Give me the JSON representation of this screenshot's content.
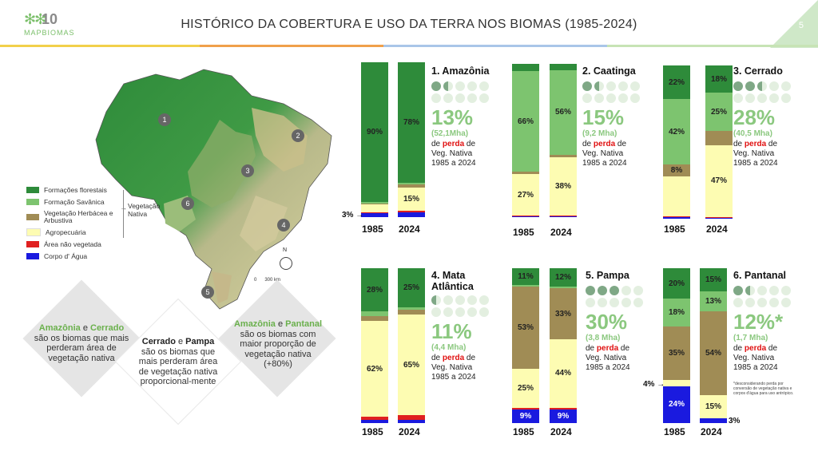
{
  "header": {
    "title": "HISTÓRICO DA COBERTURA E USO DA TERRA NOS BIOMAS (1985-2024)",
    "page": "5",
    "logo_number": "10",
    "logo_sub": "ANOS",
    "logo_text": "MAPBIOMAS"
  },
  "legend": {
    "items": [
      "Formações florestais",
      "Formação Savânica",
      "Vegetação Herbácea e Arbustiva",
      "Agropecuária",
      "Área não vegetada",
      "Corpo d' Água"
    ],
    "group_label": "Vegetação Nativa",
    "colors": [
      "#2e8b3a",
      "#7dc46f",
      "#a08c55",
      "#fdfcb2",
      "#e02020",
      "#1a1adf"
    ]
  },
  "map": {
    "markers": [
      "1",
      "2",
      "3",
      "4",
      "5",
      "6"
    ],
    "scale": "0      300 km",
    "north": "N"
  },
  "diamonds": [
    {
      "hl1": "Amazônia",
      "t1": " e ",
      "hl2": "Cerrado",
      "t2": " são os biomas que mais perderam área de vegetação nativa"
    },
    {
      "hl1": "Cerrado",
      "t1": " e ",
      "hl2": "Pampa",
      "t2": " são os biomas que mais perderam área de vegetação nativa proporcional-mente"
    },
    {
      "hl1": "Amazônia",
      "t1": " e ",
      "hl2": "Pantanal",
      "t2": " são os biomas com maior proporção de vegetação nativa (+80%)"
    }
  ],
  "biomes": [
    {
      "title": "1. Amazônia",
      "pct": "13%",
      "sub": "(52,1Mha)",
      "desc_pre": "de ",
      "desc_red": "perda",
      "desc_post": " de Veg. Nativa 1985 a 2024",
      "dots_full": 1,
      "dots_half": 1,
      "bars": [
        {
          "year": "1985",
          "segs": [
            {
              "c": "#2e8b3a",
              "v": 90,
              "l": "90%"
            },
            {
              "c": "#7dc46f",
              "v": 1,
              "l": ""
            },
            {
              "c": "#a08c55",
              "v": 1,
              "l": ""
            },
            {
              "c": "#fdfcb2",
              "v": 5,
              "l": ""
            },
            {
              "c": "#e02020",
              "v": 0.6,
              "l": ""
            },
            {
              "c": "#1a1adf",
              "v": 2.4,
              "l": ""
            }
          ]
        },
        {
          "year": "2024",
          "segs": [
            {
              "c": "#2e8b3a",
              "v": 78,
              "l": "78%"
            },
            {
              "c": "#7dc46f",
              "v": 1,
              "l": ""
            },
            {
              "c": "#a08c55",
              "v": 2,
              "l": ""
            },
            {
              "c": "#fdfcb2",
              "v": 15,
              "l": "15%"
            },
            {
              "c": "#e02020",
              "v": 1,
              "l": ""
            },
            {
              "c": "#1a1adf",
              "v": 3,
              "l": ""
            }
          ]
        }
      ],
      "callout": "3%"
    },
    {
      "title": "2. Caatinga",
      "pct": "15%",
      "sub": "(9,2 Mha)",
      "desc_pre": "de ",
      "desc_red": "perda",
      "desc_post": " de Veg. Nativa 1985 a 2024",
      "dots_full": 1,
      "dots_half": 1,
      "bars": [
        {
          "year": "1985",
          "segs": [
            {
              "c": "#2e8b3a",
              "v": 5,
              "l": ""
            },
            {
              "c": "#7dc46f",
              "v": 66,
              "l": "66%"
            },
            {
              "c": "#a08c55",
              "v": 2,
              "l": ""
            },
            {
              "c": "#fdfcb2",
              "v": 27,
              "l": "27%"
            },
            {
              "c": "#e02020",
              "v": 0.5,
              "l": ""
            },
            {
              "c": "#1a1adf",
              "v": 0.7,
              "l": ""
            }
          ]
        },
        {
          "year": "2024",
          "segs": [
            {
              "c": "#2e8b3a",
              "v": 4,
              "l": ""
            },
            {
              "c": "#7dc46f",
              "v": 56,
              "l": "56%"
            },
            {
              "c": "#a08c55",
              "v": 2,
              "l": ""
            },
            {
              "c": "#fdfcb2",
              "v": 38,
              "l": "38%"
            },
            {
              "c": "#e02020",
              "v": 0.6,
              "l": ""
            },
            {
              "c": "#1a1adf",
              "v": 0.7,
              "l": ""
            }
          ]
        }
      ]
    },
    {
      "title": "3. Cerrado",
      "pct": "28%",
      "sub": "(40,5 Mha)",
      "desc_pre": "de ",
      "desc_red": "perda",
      "desc_post": " de Veg. Nativa 1985 a 2024",
      "dots_full": 2,
      "dots_half": 1,
      "bars": [
        {
          "year": "1985",
          "segs": [
            {
              "c": "#2e8b3a",
              "v": 22,
              "l": "22%"
            },
            {
              "c": "#7dc46f",
              "v": 42,
              "l": "42%"
            },
            {
              "c": "#a08c55",
              "v": 8,
              "l": "8%"
            },
            {
              "c": "#fdfcb2",
              "v": 26,
              "l": ""
            },
            {
              "c": "#e02020",
              "v": 0.6,
              "l": ""
            },
            {
              "c": "#1a1adf",
              "v": 0.8,
              "l": ""
            }
          ]
        },
        {
          "year": "2024",
          "segs": [
            {
              "c": "#2e8b3a",
              "v": 18,
              "l": "18%"
            },
            {
              "c": "#7dc46f",
              "v": 25,
              "l": "25%"
            },
            {
              "c": "#a08c55",
              "v": 9,
              "l": ""
            },
            {
              "c": "#fdfcb2",
              "v": 47,
              "l": "47%"
            },
            {
              "c": "#e02020",
              "v": 0.5,
              "l": ""
            },
            {
              "c": "#1a1adf",
              "v": 0.7,
              "l": ""
            }
          ]
        }
      ]
    },
    {
      "title": "4. Mata Atlântica",
      "pct": "11%",
      "sub": "(4,4 Mha)",
      "desc_pre": "de ",
      "desc_red": "perda",
      "desc_post": " de Veg. Nativa 1985 a 2024",
      "dots_full": 0,
      "dots_half": 1,
      "bars": [
        {
          "year": "1985",
          "segs": [
            {
              "c": "#2e8b3a",
              "v": 28,
              "l": "28%"
            },
            {
              "c": "#7dc46f",
              "v": 3,
              "l": ""
            },
            {
              "c": "#a08c55",
              "v": 3,
              "l": ""
            },
            {
              "c": "#fdfcb2",
              "v": 62,
              "l": "62%"
            },
            {
              "c": "#e02020",
              "v": 2,
              "l": ""
            },
            {
              "c": "#1a1adf",
              "v": 2,
              "l": ""
            }
          ]
        },
        {
          "year": "2024",
          "segs": [
            {
              "c": "#2e8b3a",
              "v": 25,
              "l": "25%"
            },
            {
              "c": "#7dc46f",
              "v": 2,
              "l": ""
            },
            {
              "c": "#a08c55",
              "v": 3,
              "l": ""
            },
            {
              "c": "#fdfcb2",
              "v": 65,
              "l": "65%"
            },
            {
              "c": "#e02020",
              "v": 3,
              "l": ""
            },
            {
              "c": "#1a1adf",
              "v": 2,
              "l": ""
            }
          ]
        }
      ]
    },
    {
      "title": "5. Pampa",
      "pct": "30%",
      "sub": "(3,8 Mha)",
      "desc_pre": "de ",
      "desc_red": "perda",
      "desc_post": " de Veg. Nativa 1985 a 2024",
      "dots_full": 3,
      "dots_half": 0,
      "bars": [
        {
          "year": "1985",
          "segs": [
            {
              "c": "#2e8b3a",
              "v": 11,
              "l": "11%"
            },
            {
              "c": "#7dc46f",
              "v": 1,
              "l": ""
            },
            {
              "c": "#a08c55",
              "v": 53,
              "l": "53%"
            },
            {
              "c": "#fdfcb2",
              "v": 25,
              "l": "25%"
            },
            {
              "c": "#e02020",
              "v": 1,
              "l": ""
            },
            {
              "c": "#1a1adf",
              "v": 9,
              "l": "9%"
            }
          ]
        },
        {
          "year": "2024",
          "segs": [
            {
              "c": "#2e8b3a",
              "v": 12,
              "l": "12%"
            },
            {
              "c": "#7dc46f",
              "v": 1,
              "l": ""
            },
            {
              "c": "#a08c55",
              "v": 33,
              "l": "33%"
            },
            {
              "c": "#fdfcb2",
              "v": 44,
              "l": "44%"
            },
            {
              "c": "#e02020",
              "v": 1,
              "l": ""
            },
            {
              "c": "#1a1adf",
              "v": 9,
              "l": "9%"
            }
          ]
        }
      ]
    },
    {
      "title": "6. Pantanal",
      "pct": "12%*",
      "sub": "(1,7 Mha)",
      "desc_pre": "de ",
      "desc_red": "perda",
      "desc_post": " de Veg. Nativa 1985 a 2024",
      "dots_full": 1,
      "dots_half": 1,
      "note": "*desconsiderando perda por conversão de vegetação nativa e corpos d'água para uso antrópico.",
      "bars": [
        {
          "year": "1985",
          "segs": [
            {
              "c": "#2e8b3a",
              "v": 20,
              "l": "20%"
            },
            {
              "c": "#7dc46f",
              "v": 18,
              "l": "18%"
            },
            {
              "c": "#a08c55",
              "v": 35,
              "l": "35%"
            },
            {
              "c": "#fdfcb2",
              "v": 4,
              "l": ""
            },
            {
              "c": "#e02020",
              "v": 0,
              "l": ""
            },
            {
              "c": "#1a1adf",
              "v": 24,
              "l": "24%"
            }
          ]
        },
        {
          "year": "2024",
          "segs": [
            {
              "c": "#2e8b3a",
              "v": 15,
              "l": "15%"
            },
            {
              "c": "#7dc46f",
              "v": 13,
              "l": "13%"
            },
            {
              "c": "#a08c55",
              "v": 54,
              "l": "54%"
            },
            {
              "c": "#fdfcb2",
              "v": 15,
              "l": "15%"
            },
            {
              "c": "#e02020",
              "v": 0,
              "l": ""
            },
            {
              "c": "#1a1adf",
              "v": 3,
              "l": ""
            }
          ]
        }
      ],
      "callout": "4%",
      "callout2": "3%"
    }
  ]
}
